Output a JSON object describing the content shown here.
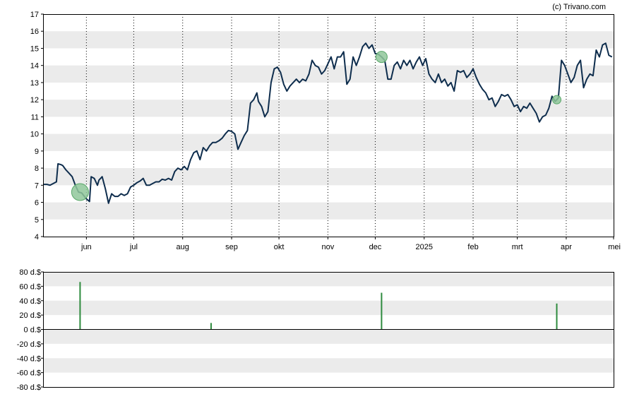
{
  "credit": "(c) Trivano.com",
  "colors": {
    "price_line": "#0e2d4d",
    "band": "#ebebeb",
    "marker_fill": "#8fc79a",
    "marker_stroke": "#5aa86a",
    "volume_bar": "#2e8b3e"
  },
  "chart_data": [
    {
      "type": "line",
      "title": "",
      "xlabel": "",
      "ylabel": "",
      "ylim": [
        4,
        17
      ],
      "y_ticks": [
        "4",
        "5",
        "6",
        "7",
        "8",
        "9",
        "10",
        "11",
        "12",
        "13",
        "14",
        "15",
        "16",
        "17"
      ],
      "x_ticks": [
        {
          "label": "jun",
          "date": "2024-06-01"
        },
        {
          "label": "jul",
          "date": "2024-07-01"
        },
        {
          "label": "aug",
          "date": "2024-08-01"
        },
        {
          "label": "sep",
          "date": "2024-09-01"
        },
        {
          "label": "okt",
          "date": "2024-10-01"
        },
        {
          "label": "nov",
          "date": "2024-11-01"
        },
        {
          "label": "dec",
          "date": "2024-12-01"
        },
        {
          "label": "2025",
          "date": "2025-01-01"
        },
        {
          "label": "feb",
          "date": "2025-02-01"
        },
        {
          "label": "mrt",
          "date": "2025-03-01"
        },
        {
          "label": "apr",
          "date": "2025-04-01"
        },
        {
          "label": "mei",
          "date": "2025-05-01"
        }
      ],
      "x_range": [
        "2024-05-05",
        "2025-05-01"
      ],
      "grid": "vertical dotted lines at month ticks, alternating horizontal bands",
      "series": [
        {
          "points": [
            [
              "2024-05-05",
              7.05
            ],
            [
              "2024-05-07",
              7.05
            ],
            [
              "2024-05-09",
              7.0
            ],
            [
              "2024-05-11",
              7.1
            ],
            [
              "2024-05-13",
              7.2
            ],
            [
              "2024-05-14",
              8.25
            ],
            [
              "2024-05-16",
              8.2
            ],
            [
              "2024-05-17",
              8.15
            ],
            [
              "2024-05-19",
              7.9
            ],
            [
              "2024-05-21",
              7.7
            ],
            [
              "2024-05-23",
              7.5
            ],
            [
              "2024-05-25",
              7.0
            ],
            [
              "2024-05-27",
              6.6
            ],
            [
              "2024-05-29",
              6.55
            ],
            [
              "2024-06-01",
              6.2
            ],
            [
              "2024-06-03",
              6.05
            ],
            [
              "2024-06-04",
              7.5
            ],
            [
              "2024-06-06",
              7.4
            ],
            [
              "2024-06-08",
              7.0
            ],
            [
              "2024-06-09",
              7.3
            ],
            [
              "2024-06-11",
              7.5
            ],
            [
              "2024-06-13",
              6.8
            ],
            [
              "2024-06-15",
              5.95
            ],
            [
              "2024-06-17",
              6.5
            ],
            [
              "2024-06-19",
              6.35
            ],
            [
              "2024-06-21",
              6.35
            ],
            [
              "2024-06-23",
              6.5
            ],
            [
              "2024-06-25",
              6.4
            ],
            [
              "2024-06-27",
              6.5
            ],
            [
              "2024-06-29",
              6.9
            ],
            [
              "2024-07-01",
              7.0
            ],
            [
              "2024-07-03",
              7.15
            ],
            [
              "2024-07-05",
              7.25
            ],
            [
              "2024-07-07",
              7.4
            ],
            [
              "2024-07-09",
              7.0
            ],
            [
              "2024-07-11",
              7.0
            ],
            [
              "2024-07-13",
              7.1
            ],
            [
              "2024-07-15",
              7.2
            ],
            [
              "2024-07-17",
              7.2
            ],
            [
              "2024-07-19",
              7.35
            ],
            [
              "2024-07-21",
              7.3
            ],
            [
              "2024-07-23",
              7.4
            ],
            [
              "2024-07-25",
              7.3
            ],
            [
              "2024-07-27",
              7.8
            ],
            [
              "2024-07-29",
              8.0
            ],
            [
              "2024-07-31",
              7.9
            ],
            [
              "2024-08-02",
              8.1
            ],
            [
              "2024-08-04",
              7.9
            ],
            [
              "2024-08-06",
              8.5
            ],
            [
              "2024-08-08",
              8.9
            ],
            [
              "2024-08-10",
              9.0
            ],
            [
              "2024-08-12",
              8.5
            ],
            [
              "2024-08-14",
              9.2
            ],
            [
              "2024-08-16",
              9.0
            ],
            [
              "2024-08-18",
              9.3
            ],
            [
              "2024-08-20",
              9.5
            ],
            [
              "2024-08-22",
              9.5
            ],
            [
              "2024-08-24",
              9.6
            ],
            [
              "2024-08-26",
              9.75
            ],
            [
              "2024-08-28",
              10.0
            ],
            [
              "2024-08-30",
              10.2
            ],
            [
              "2024-09-01",
              10.15
            ],
            [
              "2024-09-03",
              10.0
            ],
            [
              "2024-09-05",
              9.1
            ],
            [
              "2024-09-07",
              9.5
            ],
            [
              "2024-09-09",
              9.9
            ],
            [
              "2024-09-11",
              10.2
            ],
            [
              "2024-09-13",
              11.8
            ],
            [
              "2024-09-15",
              12.0
            ],
            [
              "2024-09-17",
              12.4
            ],
            [
              "2024-09-18",
              11.9
            ],
            [
              "2024-09-20",
              11.6
            ],
            [
              "2024-09-22",
              11.0
            ],
            [
              "2024-09-24",
              11.3
            ],
            [
              "2024-09-26",
              13.0
            ],
            [
              "2024-09-28",
              13.8
            ],
            [
              "2024-09-30",
              13.9
            ],
            [
              "2024-10-02",
              13.6
            ],
            [
              "2024-10-04",
              12.9
            ],
            [
              "2024-10-06",
              12.5
            ],
            [
              "2024-10-08",
              12.8
            ],
            [
              "2024-10-10",
              13.0
            ],
            [
              "2024-10-12",
              13.2
            ],
            [
              "2024-10-14",
              13.0
            ],
            [
              "2024-10-16",
              13.2
            ],
            [
              "2024-10-18",
              13.1
            ],
            [
              "2024-10-20",
              13.5
            ],
            [
              "2024-10-22",
              14.3
            ],
            [
              "2024-10-24",
              14.0
            ],
            [
              "2024-10-26",
              13.9
            ],
            [
              "2024-10-28",
              13.5
            ],
            [
              "2024-10-30",
              13.7
            ],
            [
              "2024-11-01",
              14.1
            ],
            [
              "2024-11-03",
              14.5
            ],
            [
              "2024-11-05",
              13.8
            ],
            [
              "2024-11-07",
              14.5
            ],
            [
              "2024-11-09",
              14.5
            ],
            [
              "2024-11-11",
              14.8
            ],
            [
              "2024-11-13",
              12.9
            ],
            [
              "2024-11-15",
              13.2
            ],
            [
              "2024-11-17",
              14.5
            ],
            [
              "2024-11-19",
              14.0
            ],
            [
              "2024-11-21",
              14.5
            ],
            [
              "2024-11-23",
              15.1
            ],
            [
              "2024-11-25",
              15.3
            ],
            [
              "2024-11-27",
              15.0
            ],
            [
              "2024-11-29",
              15.2
            ],
            [
              "2024-12-01",
              14.7
            ],
            [
              "2024-12-03",
              14.65
            ],
            [
              "2024-12-05",
              14.5
            ],
            [
              "2024-12-07",
              14.3
            ],
            [
              "2024-12-09",
              13.2
            ],
            [
              "2024-12-11",
              13.2
            ],
            [
              "2024-12-13",
              14.0
            ],
            [
              "2024-12-15",
              14.2
            ],
            [
              "2024-12-17",
              13.8
            ],
            [
              "2024-12-19",
              14.3
            ],
            [
              "2024-12-21",
              14.0
            ],
            [
              "2024-12-23",
              14.3
            ],
            [
              "2024-12-25",
              13.8
            ],
            [
              "2024-12-27",
              14.2
            ],
            [
              "2024-12-29",
              14.5
            ],
            [
              "2024-12-31",
              14.0
            ],
            [
              "2025-01-02",
              14.4
            ],
            [
              "2025-01-04",
              13.5
            ],
            [
              "2025-01-06",
              13.2
            ],
            [
              "2025-01-08",
              13.0
            ],
            [
              "2025-01-10",
              13.5
            ],
            [
              "2025-01-12",
              13.0
            ],
            [
              "2025-01-14",
              13.2
            ],
            [
              "2025-01-16",
              12.8
            ],
            [
              "2025-01-18",
              13.0
            ],
            [
              "2025-01-20",
              12.5
            ],
            [
              "2025-01-22",
              13.7
            ],
            [
              "2025-01-24",
              13.6
            ],
            [
              "2025-01-26",
              13.7
            ],
            [
              "2025-01-28",
              13.3
            ],
            [
              "2025-01-30",
              13.5
            ],
            [
              "2025-02-01",
              13.8
            ],
            [
              "2025-02-03",
              13.3
            ],
            [
              "2025-02-05",
              12.9
            ],
            [
              "2025-02-07",
              12.6
            ],
            [
              "2025-02-09",
              12.4
            ],
            [
              "2025-02-11",
              12.0
            ],
            [
              "2025-02-13",
              12.1
            ],
            [
              "2025-02-15",
              11.6
            ],
            [
              "2025-02-17",
              11.9
            ],
            [
              "2025-02-19",
              12.3
            ],
            [
              "2025-02-21",
              12.2
            ],
            [
              "2025-02-23",
              12.3
            ],
            [
              "2025-02-25",
              12.0
            ],
            [
              "2025-02-27",
              11.6
            ],
            [
              "2025-03-01",
              11.7
            ],
            [
              "2025-03-03",
              11.3
            ],
            [
              "2025-03-05",
              11.6
            ],
            [
              "2025-03-07",
              11.5
            ],
            [
              "2025-03-09",
              11.8
            ],
            [
              "2025-03-11",
              11.5
            ],
            [
              "2025-03-13",
              11.2
            ],
            [
              "2025-03-15",
              10.7
            ],
            [
              "2025-03-17",
              11.0
            ],
            [
              "2025-03-19",
              11.1
            ],
            [
              "2025-03-21",
              11.5
            ],
            [
              "2025-03-23",
              12.2
            ],
            [
              "2025-03-25",
              11.9
            ],
            [
              "2025-03-27",
              12.1
            ],
            [
              "2025-03-29",
              14.3
            ],
            [
              "2025-03-31",
              14.0
            ],
            [
              "2025-04-02",
              13.5
            ],
            [
              "2025-04-04",
              13.0
            ],
            [
              "2025-04-06",
              13.3
            ],
            [
              "2025-04-08",
              14.0
            ],
            [
              "2025-04-10",
              14.3
            ],
            [
              "2025-04-12",
              12.7
            ],
            [
              "2025-04-14",
              13.2
            ],
            [
              "2025-04-16",
              13.5
            ],
            [
              "2025-04-18",
              13.4
            ],
            [
              "2025-04-20",
              14.9
            ],
            [
              "2025-04-22",
              14.5
            ],
            [
              "2025-04-24",
              15.2
            ],
            [
              "2025-04-26",
              15.3
            ],
            [
              "2025-04-28",
              14.6
            ],
            [
              "2025-04-30",
              14.5
            ]
          ]
        }
      ],
      "markers": [
        {
          "date": "2024-05-28",
          "value": 6.6,
          "size": "large"
        },
        {
          "date": "2024-12-05",
          "value": 14.5,
          "size": "medium"
        },
        {
          "date": "2025-03-26",
          "value": 12.0,
          "size": "small"
        }
      ]
    },
    {
      "type": "bar",
      "title": "",
      "ylim": [
        -80,
        80
      ],
      "y_ticks": [
        "80 d.$",
        "60 d.$",
        "40 d.$",
        "20 d.$",
        "0 d.$",
        "-20 d.$",
        "-40 d.$",
        "-60 d.$",
        "-80 d.$"
      ],
      "grid": "alternating horizontal bands",
      "bars": [
        {
          "date": "2024-05-28",
          "value": 66
        },
        {
          "date": "2024-08-19",
          "value": 9
        },
        {
          "date": "2024-12-05",
          "value": 51
        },
        {
          "date": "2025-03-26",
          "value": 36
        }
      ]
    }
  ]
}
